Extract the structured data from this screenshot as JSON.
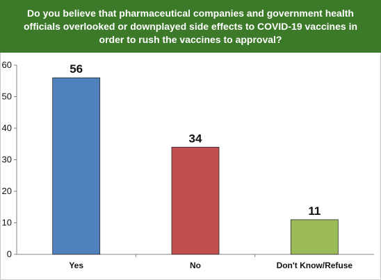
{
  "title": "Do you believe that pharmaceutical companies and government health officials overlooked or downplayed side effects to COVID-19 vaccines in order to rush the vaccines to approval?",
  "colors": {
    "title_bg": "#3c7a2a",
    "title_text": "#ffffff",
    "yes": "#4f81bd",
    "no": "#c0504d",
    "dont_know": "#9bbb59"
  },
  "chart_data": {
    "type": "bar",
    "title": "Do you believe that pharmaceutical companies and government health officials overlooked or downplayed side effects to COVID-19 vaccines in order to rush the vaccines to approval?",
    "categories": [
      "Yes",
      "No",
      "Don't Know/Refuse"
    ],
    "values": [
      56,
      34,
      11
    ],
    "data_labels": [
      "56",
      "34",
      "11"
    ],
    "bar_colors": [
      "#4f81bd",
      "#c0504d",
      "#9bbb59"
    ],
    "xlabel": "",
    "ylabel": "",
    "ylim": [
      0,
      60
    ],
    "yticks": [
      "0",
      "10",
      "20",
      "30",
      "40",
      "50",
      "60"
    ],
    "grid": false,
    "legend": "none"
  }
}
